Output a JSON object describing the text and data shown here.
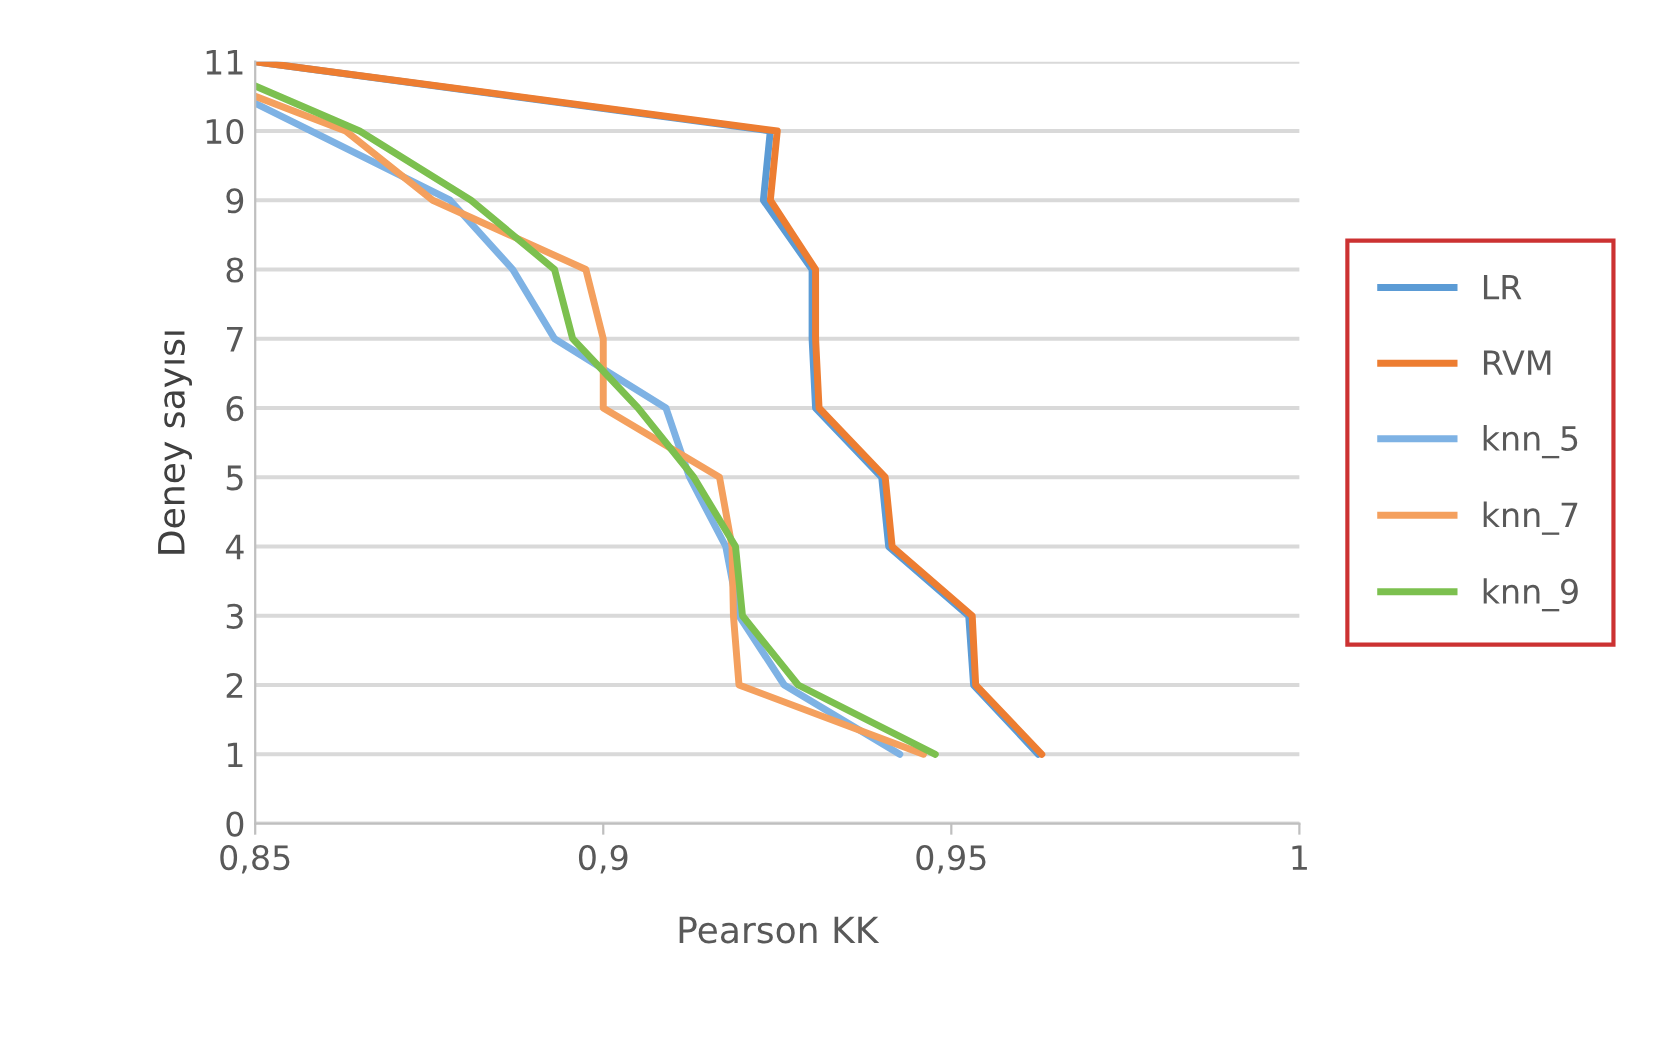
{
  "chart_data": {
    "type": "line",
    "xlabel": "Pearson KK",
    "ylabel": "Deney sayısı",
    "xlim": [
      0.85,
      1
    ],
    "xticks": [
      {
        "value": 0.85,
        "label": "0,85"
      },
      {
        "value": 0.9,
        "label": "0,9"
      },
      {
        "value": 0.95,
        "label": "0,95"
      },
      {
        "value": 1,
        "label": "1"
      }
    ],
    "ylim": [
      0,
      11
    ],
    "yticks": [
      0,
      1,
      2,
      3,
      4,
      5,
      6,
      7,
      8,
      9,
      10,
      11
    ],
    "grid": "y",
    "legend": "right",
    "marker": "none",
    "line_style": "solid",
    "series": [
      {
        "name": "LR",
        "color": "#5b9bd5",
        "x": [
          0.9625,
          0.9532,
          0.9525,
          0.941,
          0.94,
          0.9305,
          0.93,
          0.93,
          0.923,
          0.924,
          0.85
        ],
        "values": [
          1,
          2,
          3,
          4,
          5,
          6,
          7,
          8,
          9,
          10,
          11
        ]
      },
      {
        "name": "RVM",
        "color": "#ed7d31",
        "x": [
          0.963,
          0.9535,
          0.953,
          0.9415,
          0.9405,
          0.931,
          0.9305,
          0.9305,
          0.924,
          0.925,
          0.85
        ],
        "values": [
          1,
          2,
          3,
          4,
          5,
          6,
          7,
          8,
          9,
          10,
          11
        ]
      },
      {
        "name": "knn_5",
        "color": "#7eb2e4",
        "x": [
          0.9426,
          0.926,
          0.9195,
          0.9176,
          0.9124,
          0.909,
          0.893,
          0.887,
          0.878,
          0.858,
          0.85
        ],
        "values": [
          1,
          2,
          3,
          4,
          5,
          6,
          7,
          8,
          9,
          10,
          10.4
        ]
      },
      {
        "name": "knn_7",
        "color": "#f4a05e",
        "x": [
          0.946,
          0.9195,
          0.9187,
          0.9185,
          0.9167,
          0.9,
          0.9,
          0.8975,
          0.8755,
          0.863,
          0.85
        ],
        "values": [
          1,
          2,
          3,
          4,
          5,
          6,
          7,
          8,
          9,
          10,
          10.5
        ]
      },
      {
        "name": "knn_9",
        "color": "#7cc04f",
        "x": [
          0.9477,
          0.928,
          0.92,
          0.919,
          0.913,
          0.905,
          0.8956,
          0.893,
          0.881,
          0.865,
          0.85
        ],
        "values": [
          1,
          2,
          3,
          4,
          5,
          6,
          7,
          8,
          9,
          10,
          10.65
        ]
      }
    ]
  }
}
